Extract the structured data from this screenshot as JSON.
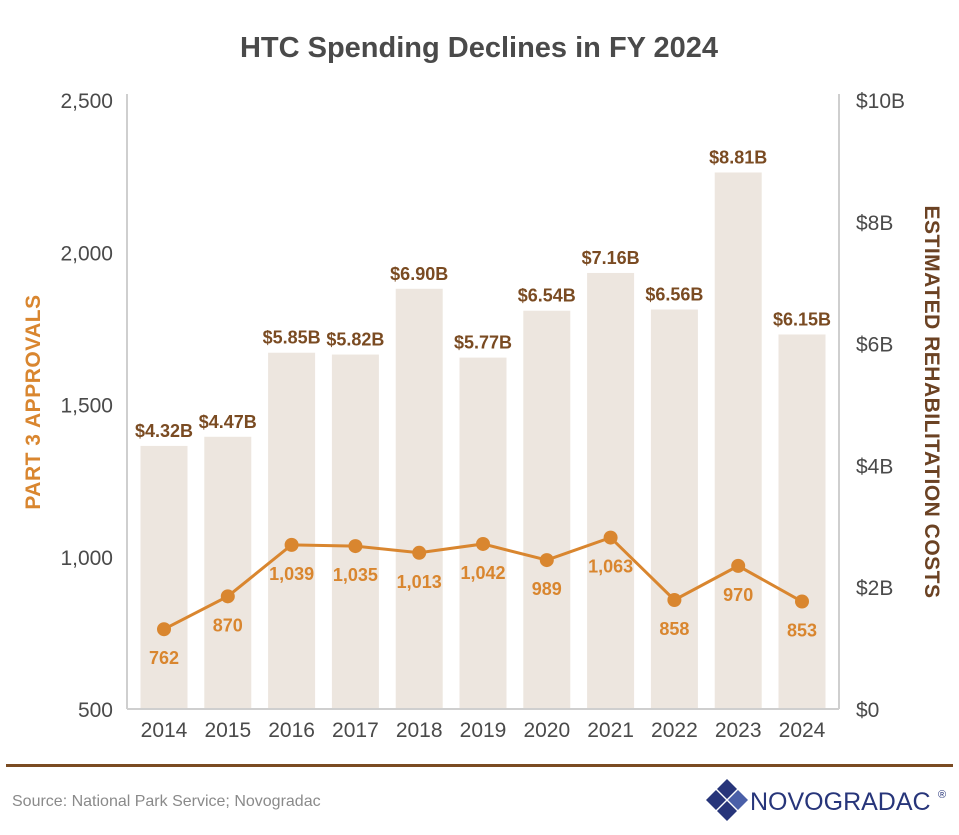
{
  "chart_data": {
    "type": "bar+line",
    "title": "HTC Spending Declines in FY 2024",
    "categories": [
      "2014",
      "2015",
      "2016",
      "2017",
      "2018",
      "2019",
      "2020",
      "2021",
      "2022",
      "2023",
      "2024"
    ],
    "series": [
      {
        "name": "ESTIMATED REHABILITATION COSTS",
        "type": "bar",
        "axis": "right",
        "values": [
          4.32,
          4.47,
          5.85,
          5.82,
          6.9,
          5.77,
          6.54,
          7.16,
          6.56,
          8.81,
          6.15
        ],
        "labels": [
          "$4.32B",
          "$4.47B",
          "$5.85B",
          "$5.82B",
          "$6.90B",
          "$5.77B",
          "$6.54B",
          "$7.16B",
          "$6.56B",
          "$8.81B",
          "$6.15B"
        ]
      },
      {
        "name": "PART 3 APPROVALS",
        "type": "line",
        "axis": "left",
        "values": [
          762,
          870,
          1039,
          1035,
          1013,
          1042,
          989,
          1063,
          858,
          970,
          853
        ],
        "labels": [
          "762",
          "870",
          "1,039",
          "1,035",
          "1,013",
          "1,042",
          "989",
          "1,063",
          "858",
          "970",
          "853"
        ]
      }
    ],
    "y_left": {
      "label": "PART 3 APPROVALS",
      "ylim": [
        500,
        2500
      ],
      "ticks": [
        500,
        1000,
        1500,
        2000,
        2500
      ],
      "tick_labels": [
        "500",
        "1,000",
        "1,500",
        "2,000",
        "2,500"
      ]
    },
    "y_right": {
      "label": "ESTIMATED REHABILITATION COSTS",
      "ylim": [
        0,
        10
      ],
      "ticks": [
        0,
        2,
        4,
        6,
        8,
        10
      ],
      "tick_labels": [
        "$0",
        "$2B",
        "$4B",
        "$6B",
        "$8B",
        "$10B"
      ]
    },
    "grid": false,
    "legend": "none"
  },
  "colors": {
    "bar": "#ede6df",
    "line": "#d9862f",
    "bar_label": "#7a4b22",
    "left_axis_title": "#d9862f",
    "right_axis_title": "#6b4223",
    "axis": "#cfcfcf",
    "text": "#4a4a4a",
    "divider": "#7a4b22",
    "logo_dark": "#27357a",
    "logo_mid": "#4a5fa8"
  },
  "footer": {
    "source": "Source: National Park Service; Novogradac",
    "logo_text": "NOVOGRADAC",
    "logo_mark": "®"
  }
}
